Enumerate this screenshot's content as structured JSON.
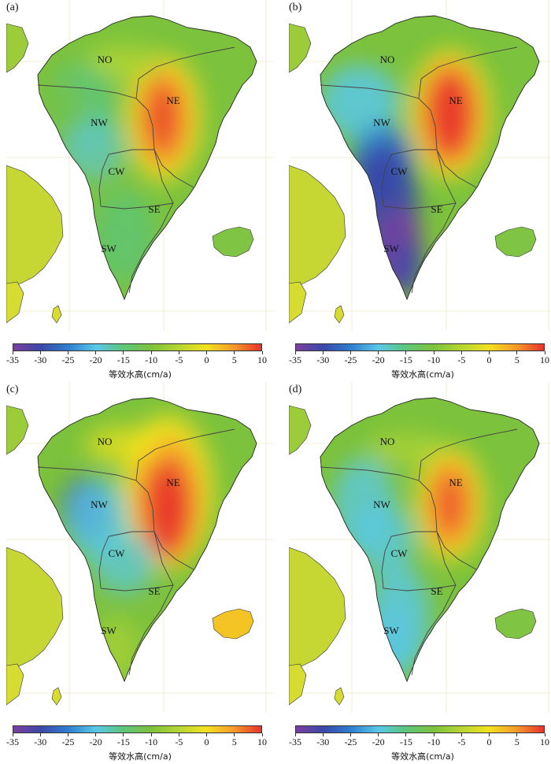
{
  "figure": {
    "panels": [
      {
        "id": "a",
        "label": "(a)",
        "variant": "a"
      },
      {
        "id": "b",
        "label": "(b)",
        "variant": "b"
      },
      {
        "id": "c",
        "label": "(c)",
        "variant": "c"
      },
      {
        "id": "d",
        "label": "(d)",
        "variant": "d"
      }
    ],
    "regions": [
      "NO",
      "NE",
      "NW",
      "CW",
      "SE",
      "SW"
    ],
    "colorbar": {
      "title": "等效水高(cm/a)",
      "ticks": [
        "-35",
        "-30",
        "-25",
        "-20",
        "-15",
        "-10",
        "-5",
        "0",
        "5",
        "10"
      ],
      "min": -35,
      "max": 10,
      "colors": [
        "#7b3fa0",
        "#3a48a8",
        "#2f7fd0",
        "#5ac8e8",
        "#5cc67a",
        "#7cc23c",
        "#b5d632",
        "#f3e21e",
        "#f59a2a",
        "#e8322a"
      ]
    }
  }
}
